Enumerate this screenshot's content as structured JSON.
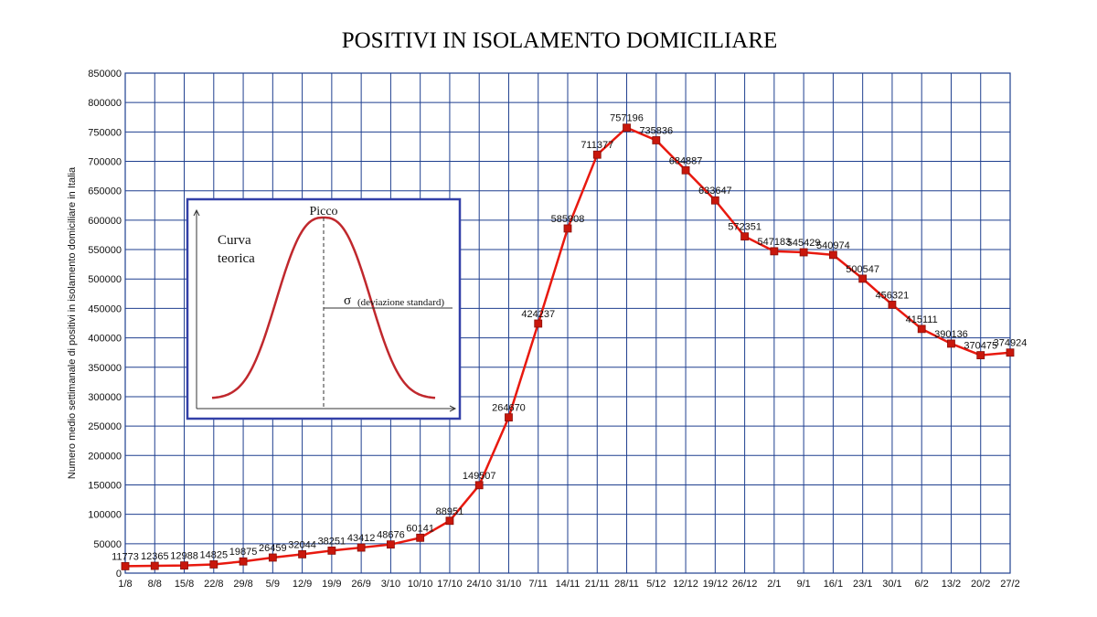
{
  "chart_data": {
    "type": "line",
    "title": "POSITIVI IN ISOLAMENTO DOMICILIARE",
    "xlabel": "",
    "ylabel": "Numero medio settimanale di positivi in isolamento domiciliare in Italia",
    "ylim": [
      0,
      850000
    ],
    "ytick_step": 50000,
    "grid": true,
    "categories": [
      "1/8",
      "8/8",
      "15/8",
      "22/8",
      "29/8",
      "5/9",
      "12/9",
      "19/9",
      "26/9",
      "3/10",
      "10/10",
      "17/10",
      "24/10",
      "31/10",
      "7/11",
      "14/11",
      "21/11",
      "28/11",
      "5/12",
      "12/12",
      "19/12",
      "26/12",
      "2/1",
      "9/1",
      "16/1",
      "23/1",
      "30/1",
      "6/2",
      "13/2",
      "20/2",
      "27/2"
    ],
    "series": [
      {
        "color": "#e8190f",
        "values": [
          11773,
          12365,
          12988,
          14825,
          19875,
          26459,
          32044,
          38251,
          43412,
          48676,
          60141,
          88951,
          149507,
          264670,
          424237,
          585908,
          711377,
          757196,
          735836,
          684887,
          633647,
          572351,
          547183,
          545429,
          540974,
          500547,
          456321,
          415111,
          390136,
          370475,
          374924
        ],
        "labels": [
          "11773",
          "12365",
          "12988",
          "14825",
          "19875",
          "26459",
          "32044",
          "38251",
          "43412",
          "48676",
          "60141",
          "88951",
          "149507",
          "264670",
          "424237",
          "585908",
          "711377",
          "757196",
          "735836",
          "684887",
          "633647",
          "572351",
          "547183",
          "545429",
          "540974",
          "500547",
          "456321",
          "415111",
          "390136",
          "370475",
          "374924"
        ]
      }
    ],
    "inset": {
      "peak_label": "Picco",
      "curve_label_line1": "Curva",
      "curve_label_line2": "teorica",
      "sigma_symbol": "σ",
      "sigma_label": "(deviazione standard)",
      "border_color": "#3340a8",
      "curve_color": "#c0282d"
    }
  }
}
